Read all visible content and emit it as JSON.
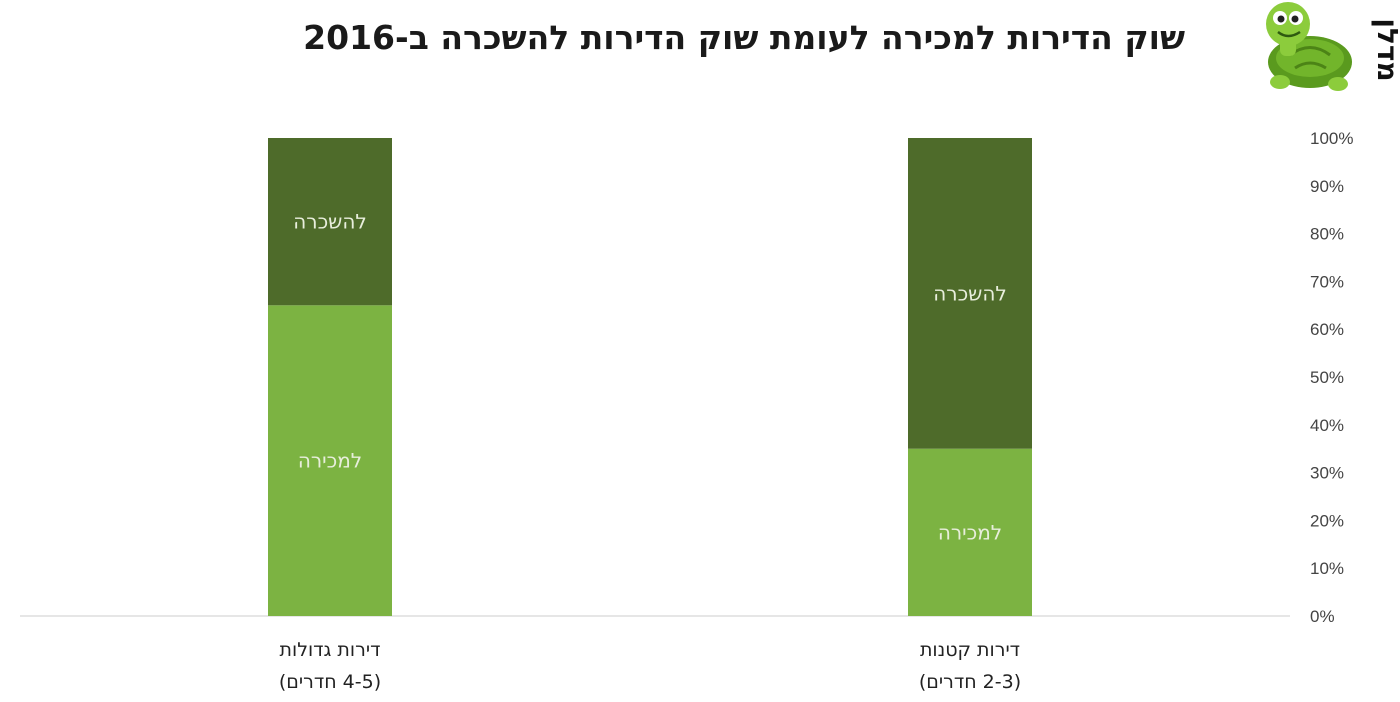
{
  "title": "שוק הדירות למכירה לעומת שוק הדירות להשכרה ב-2016",
  "logo": {
    "icon": "turtle-icon",
    "text": "מדלן"
  },
  "colors": {
    "sale": "#7cb342",
    "rent": "#4e6b2a",
    "axis": "#dddddd"
  },
  "chart_data": {
    "type": "bar",
    "stacked": true,
    "normalized_percent": true,
    "categories": [
      {
        "line1": "דירות קטנות",
        "line2": "(2-3 חדרים)"
      },
      {
        "line1": "דירות גדולות",
        "line2": "(4-5 חדרים)"
      }
    ],
    "series": [
      {
        "label": "למכירה",
        "values": [
          35,
          65
        ]
      },
      {
        "label": "להשכרה",
        "values": [
          65,
          35
        ]
      }
    ],
    "y_ticks": [
      "0%",
      "10%",
      "20%",
      "30%",
      "40%",
      "50%",
      "60%",
      "70%",
      "80%",
      "90%",
      "100%"
    ],
    "ylim": [
      0,
      100
    ],
    "y_axis_side": "right",
    "legend": "none",
    "grid": false
  }
}
